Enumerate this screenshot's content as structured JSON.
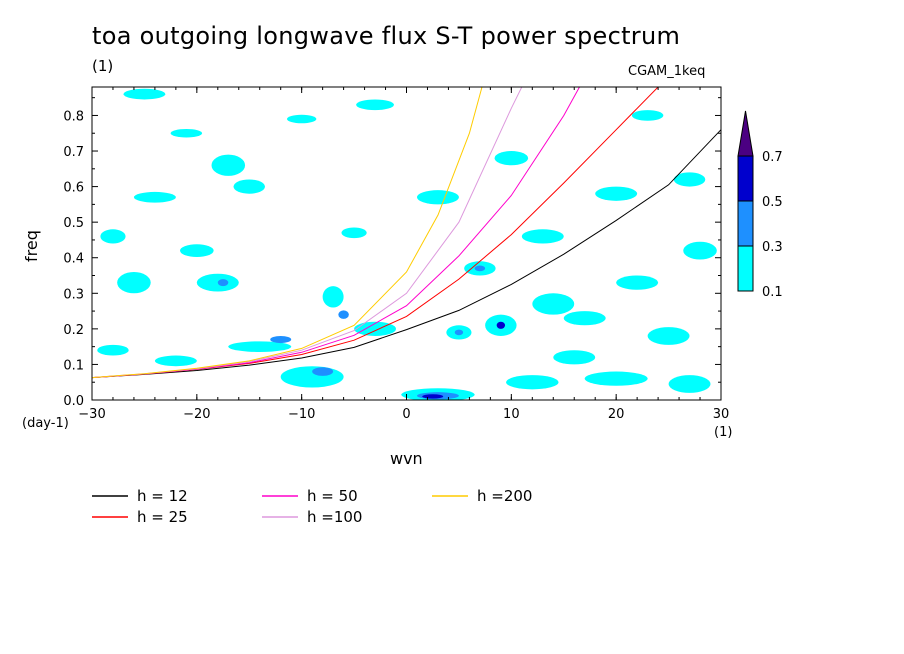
{
  "title": "toa outgoing longwave flux S-T power spectrum",
  "subtitle_units": "(1)",
  "experiment": "CGAM_1keq",
  "chart_data": {
    "type": "heatmap",
    "xlabel": "wvn",
    "ylabel": "freq",
    "x_units": "(1)",
    "y_units": "(day-1)",
    "xlim": [
      -30,
      30
    ],
    "ylim": [
      0,
      0.88
    ],
    "xticks": [
      -30,
      -20,
      -10,
      0,
      10,
      20,
      30
    ],
    "xtick_labels": [
      "−30",
      "−20",
      "−10",
      "0",
      "10",
      "20",
      "30"
    ],
    "yticks": [
      0.0,
      0.1,
      0.2,
      0.3,
      0.4,
      0.5,
      0.6,
      0.7,
      0.8
    ],
    "ytick_labels": [
      "0.0",
      "0.1",
      "0.2",
      "0.3",
      "0.4",
      "0.5",
      "0.6",
      "0.7",
      "0.8"
    ],
    "colorbar": {
      "levels": [
        0.1,
        0.3,
        0.5,
        0.7
      ],
      "level_labels": [
        "0.1",
        "0.3",
        "0.5",
        "0.7"
      ],
      "colors": [
        "#00ffff",
        "#1e90ff",
        "#0000cd",
        "#4b0082"
      ]
    },
    "patches": [
      {
        "x": -25,
        "y": 0.86,
        "rx": 2,
        "ry": 0.015,
        "level": 0
      },
      {
        "x": -21,
        "y": 0.75,
        "rx": 1.5,
        "ry": 0.012,
        "level": 0
      },
      {
        "x": -17,
        "y": 0.66,
        "rx": 0.6,
        "ry": 0.015,
        "level": 1
      },
      {
        "x": -17,
        "y": 0.66,
        "rx": 1.6,
        "ry": 0.03,
        "level": 0
      },
      {
        "x": -15,
        "y": 0.6,
        "rx": 1.5,
        "ry": 0.02,
        "level": 0
      },
      {
        "x": -24,
        "y": 0.57,
        "rx": 2,
        "ry": 0.015,
        "level": 0
      },
      {
        "x": -26,
        "y": 0.33,
        "rx": 1.6,
        "ry": 0.03,
        "level": 0
      },
      {
        "x": -18,
        "y": 0.33,
        "rx": 2,
        "ry": 0.025,
        "level": 0
      },
      {
        "x": -17.5,
        "y": 0.33,
        "rx": 0.5,
        "ry": 0.01,
        "level": 1
      },
      {
        "x": -7,
        "y": 0.29,
        "rx": 1,
        "ry": 0.03,
        "level": 0
      },
      {
        "x": -6,
        "y": 0.24,
        "rx": 0.5,
        "ry": 0.012,
        "level": 1
      },
      {
        "x": -9,
        "y": 0.065,
        "rx": 3,
        "ry": 0.03,
        "level": 0
      },
      {
        "x": -8,
        "y": 0.08,
        "rx": 1,
        "ry": 0.012,
        "level": 1
      },
      {
        "x": -14,
        "y": 0.15,
        "rx": 3,
        "ry": 0.015,
        "level": 0
      },
      {
        "x": -12,
        "y": 0.17,
        "rx": 1,
        "ry": 0.01,
        "level": 1
      },
      {
        "x": -3,
        "y": 0.2,
        "rx": 2,
        "ry": 0.02,
        "level": 0
      },
      {
        "x": 5,
        "y": 0.19,
        "rx": 1.2,
        "ry": 0.02,
        "level": 0
      },
      {
        "x": 5,
        "y": 0.19,
        "rx": 0.4,
        "ry": 0.008,
        "level": 1
      },
      {
        "x": 7,
        "y": 0.37,
        "rx": 1.5,
        "ry": 0.02,
        "level": 0
      },
      {
        "x": 7,
        "y": 0.37,
        "rx": 0.5,
        "ry": 0.008,
        "level": 1
      },
      {
        "x": 9,
        "y": 0.21,
        "rx": 1.5,
        "ry": 0.03,
        "level": 0
      },
      {
        "x": 9,
        "y": 0.21,
        "rx": 0.4,
        "ry": 0.01,
        "level": 2
      },
      {
        "x": 3,
        "y": 0.015,
        "rx": 3.5,
        "ry": 0.018,
        "level": 0
      },
      {
        "x": 3,
        "y": 0.012,
        "rx": 2,
        "ry": 0.01,
        "level": 1
      },
      {
        "x": 2.5,
        "y": 0.01,
        "rx": 1,
        "ry": 0.006,
        "level": 2
      },
      {
        "x": 12,
        "y": 0.05,
        "rx": 2.5,
        "ry": 0.02,
        "level": 0
      },
      {
        "x": 20,
        "y": 0.06,
        "rx": 3,
        "ry": 0.02,
        "level": 0
      },
      {
        "x": 27,
        "y": 0.045,
        "rx": 2,
        "ry": 0.025,
        "level": 0
      },
      {
        "x": 14,
        "y": 0.27,
        "rx": 2,
        "ry": 0.03,
        "level": 0
      },
      {
        "x": 17,
        "y": 0.23,
        "rx": 2,
        "ry": 0.02,
        "level": 0
      },
      {
        "x": 25,
        "y": 0.18,
        "rx": 2,
        "ry": 0.025,
        "level": 0
      },
      {
        "x": 22,
        "y": 0.33,
        "rx": 2,
        "ry": 0.02,
        "level": 0
      },
      {
        "x": 28,
        "y": 0.42,
        "rx": 1.6,
        "ry": 0.025,
        "level": 0
      },
      {
        "x": 13,
        "y": 0.46,
        "rx": 2,
        "ry": 0.02,
        "level": 0
      },
      {
        "x": 20,
        "y": 0.58,
        "rx": 2,
        "ry": 0.02,
        "level": 0
      },
      {
        "x": 27,
        "y": 0.62,
        "rx": 1.5,
        "ry": 0.02,
        "level": 0
      },
      {
        "x": 10,
        "y": 0.68,
        "rx": 1.6,
        "ry": 0.02,
        "level": 0
      },
      {
        "x": 3,
        "y": 0.57,
        "rx": 2,
        "ry": 0.02,
        "level": 0
      },
      {
        "x": -3,
        "y": 0.83,
        "rx": 1.8,
        "ry": 0.015,
        "level": 0
      },
      {
        "x": -10,
        "y": 0.79,
        "rx": 1.4,
        "ry": 0.012,
        "level": 0
      },
      {
        "x": -20,
        "y": 0.42,
        "rx": 1.6,
        "ry": 0.018,
        "level": 0
      },
      {
        "x": -28,
        "y": 0.46,
        "rx": 1.2,
        "ry": 0.02,
        "level": 0
      },
      {
        "x": -22,
        "y": 0.11,
        "rx": 2,
        "ry": 0.015,
        "level": 0
      },
      {
        "x": -28,
        "y": 0.14,
        "rx": 1.5,
        "ry": 0.015,
        "level": 0
      },
      {
        "x": 23,
        "y": 0.8,
        "rx": 1.5,
        "ry": 0.015,
        "level": 0
      },
      {
        "x": 16,
        "y": 0.12,
        "rx": 2,
        "ry": 0.02,
        "level": 0
      },
      {
        "x": -5,
        "y": 0.47,
        "rx": 1.2,
        "ry": 0.015,
        "level": 0
      }
    ],
    "series": [
      {
        "name": "h = 12",
        "color": "#000000",
        "x": [
          -30,
          -25,
          -20,
          -15,
          -10,
          -5,
          0,
          5,
          10,
          15,
          20,
          25,
          30
        ],
        "y": [
          0.063,
          0.072,
          0.083,
          0.098,
          0.118,
          0.148,
          0.198,
          0.252,
          0.325,
          0.41,
          0.505,
          0.605,
          0.76
        ]
      },
      {
        "name": "h = 25",
        "color": "#ff0000",
        "x": [
          -30,
          -25,
          -20,
          -15,
          -10,
          -5,
          0,
          5,
          10,
          15,
          20,
          24
        ],
        "y": [
          0.063,
          0.073,
          0.086,
          0.103,
          0.128,
          0.168,
          0.235,
          0.34,
          0.465,
          0.61,
          0.76,
          0.88
        ]
      },
      {
        "name": "h = 50",
        "color": "#ff00cc",
        "x": [
          -30,
          -25,
          -20,
          -15,
          -10,
          -5,
          0,
          5,
          10,
          15,
          16.5
        ],
        "y": [
          0.063,
          0.073,
          0.087,
          0.105,
          0.134,
          0.182,
          0.265,
          0.405,
          0.575,
          0.8,
          0.88
        ]
      },
      {
        "name": "h =100",
        "color": "#dd99dd",
        "x": [
          -30,
          -25,
          -20,
          -15,
          -10,
          -5,
          0,
          5,
          10,
          11
        ],
        "y": [
          0.063,
          0.074,
          0.088,
          0.108,
          0.14,
          0.195,
          0.3,
          0.5,
          0.82,
          0.88
        ]
      },
      {
        "name": "h =200",
        "color": "#ffcc00",
        "x": [
          -30,
          -25,
          -20,
          -15,
          -10,
          -5,
          0,
          3,
          6,
          7.2
        ],
        "y": [
          0.063,
          0.074,
          0.089,
          0.11,
          0.145,
          0.21,
          0.36,
          0.52,
          0.75,
          0.88
        ]
      }
    ],
    "legend": [
      {
        "label": "h = 12",
        "color": "#000000"
      },
      {
        "label": "h = 25",
        "color": "#ff0000"
      },
      {
        "label": "h = 50",
        "color": "#ff00cc"
      },
      {
        "label": "h =100",
        "color": "#dd99dd"
      },
      {
        "label": "h =200",
        "color": "#ffcc00"
      }
    ]
  }
}
